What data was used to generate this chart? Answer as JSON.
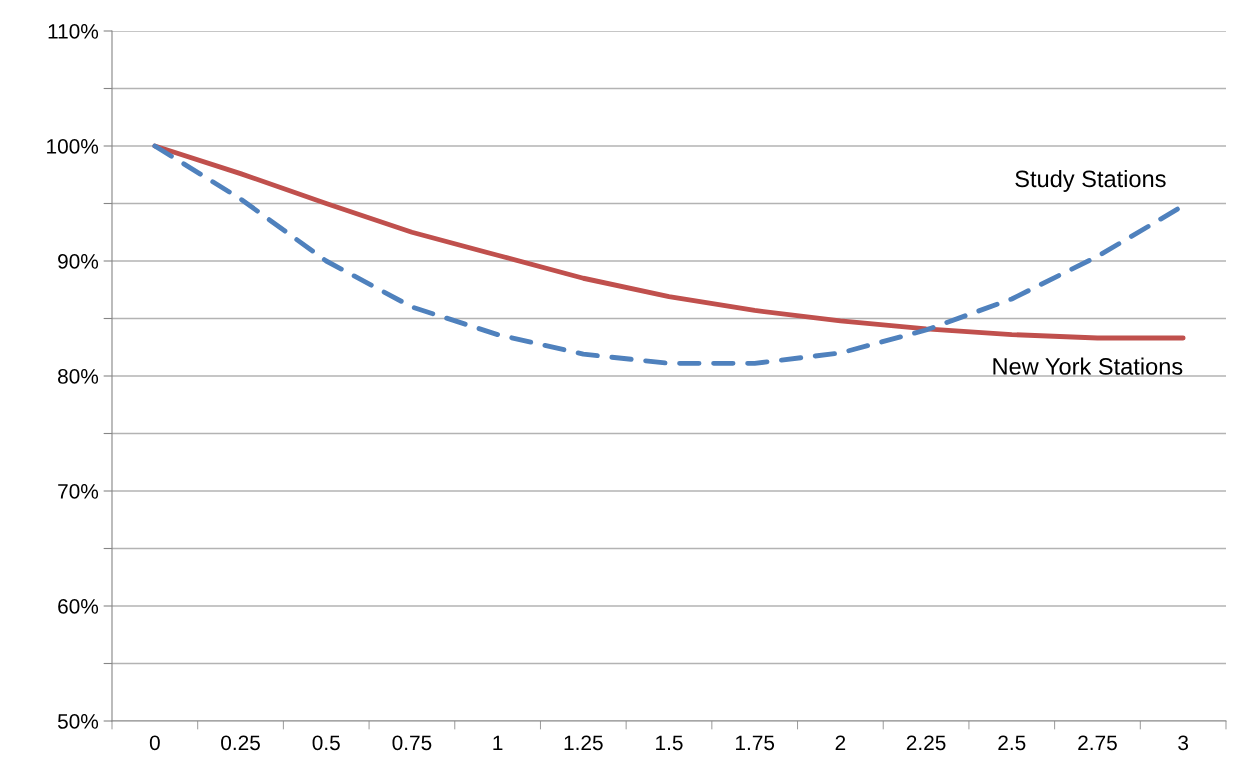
{
  "chart_data": {
    "type": "line",
    "categories": [
      "0",
      "0.25",
      "0.5",
      "0.75",
      "1",
      "1.25",
      "1.5",
      "1.75",
      "2",
      "2.25",
      "2.5",
      "2.75",
      "3"
    ],
    "series": [
      {
        "name": "New York Stations",
        "color": "#c0504d",
        "line_style": "solid",
        "values": [
          100,
          97.6,
          95.0,
          92.5,
          90.5,
          88.5,
          86.9,
          85.7,
          84.8,
          84.1,
          83.6,
          83.3,
          83.3
        ]
      },
      {
        "name": "Study Stations",
        "color": "#4f81bd",
        "line_style": "dashed",
        "values": [
          100,
          95.4,
          90.0,
          86.0,
          83.6,
          81.9,
          81.1,
          81.1,
          82.0,
          84.0,
          86.7,
          90.4,
          94.8
        ]
      }
    ],
    "ylim": [
      50,
      110
    ],
    "yticks": [
      {
        "value": 50,
        "label": "50%"
      },
      {
        "value": 55,
        "label": null
      },
      {
        "value": 60,
        "label": "60%"
      },
      {
        "value": 65,
        "label": null
      },
      {
        "value": 70,
        "label": "70%"
      },
      {
        "value": 75,
        "label": null
      },
      {
        "value": 80,
        "label": "80%"
      },
      {
        "value": 85,
        "label": null
      },
      {
        "value": 90,
        "label": "90%"
      },
      {
        "value": 95,
        "label": null
      },
      {
        "value": 100,
        "label": "100%"
      },
      {
        "value": 105,
        "label": null
      },
      {
        "value": 110,
        "label": "110%"
      }
    ],
    "grid": "y",
    "legend": false,
    "marker": "none"
  }
}
